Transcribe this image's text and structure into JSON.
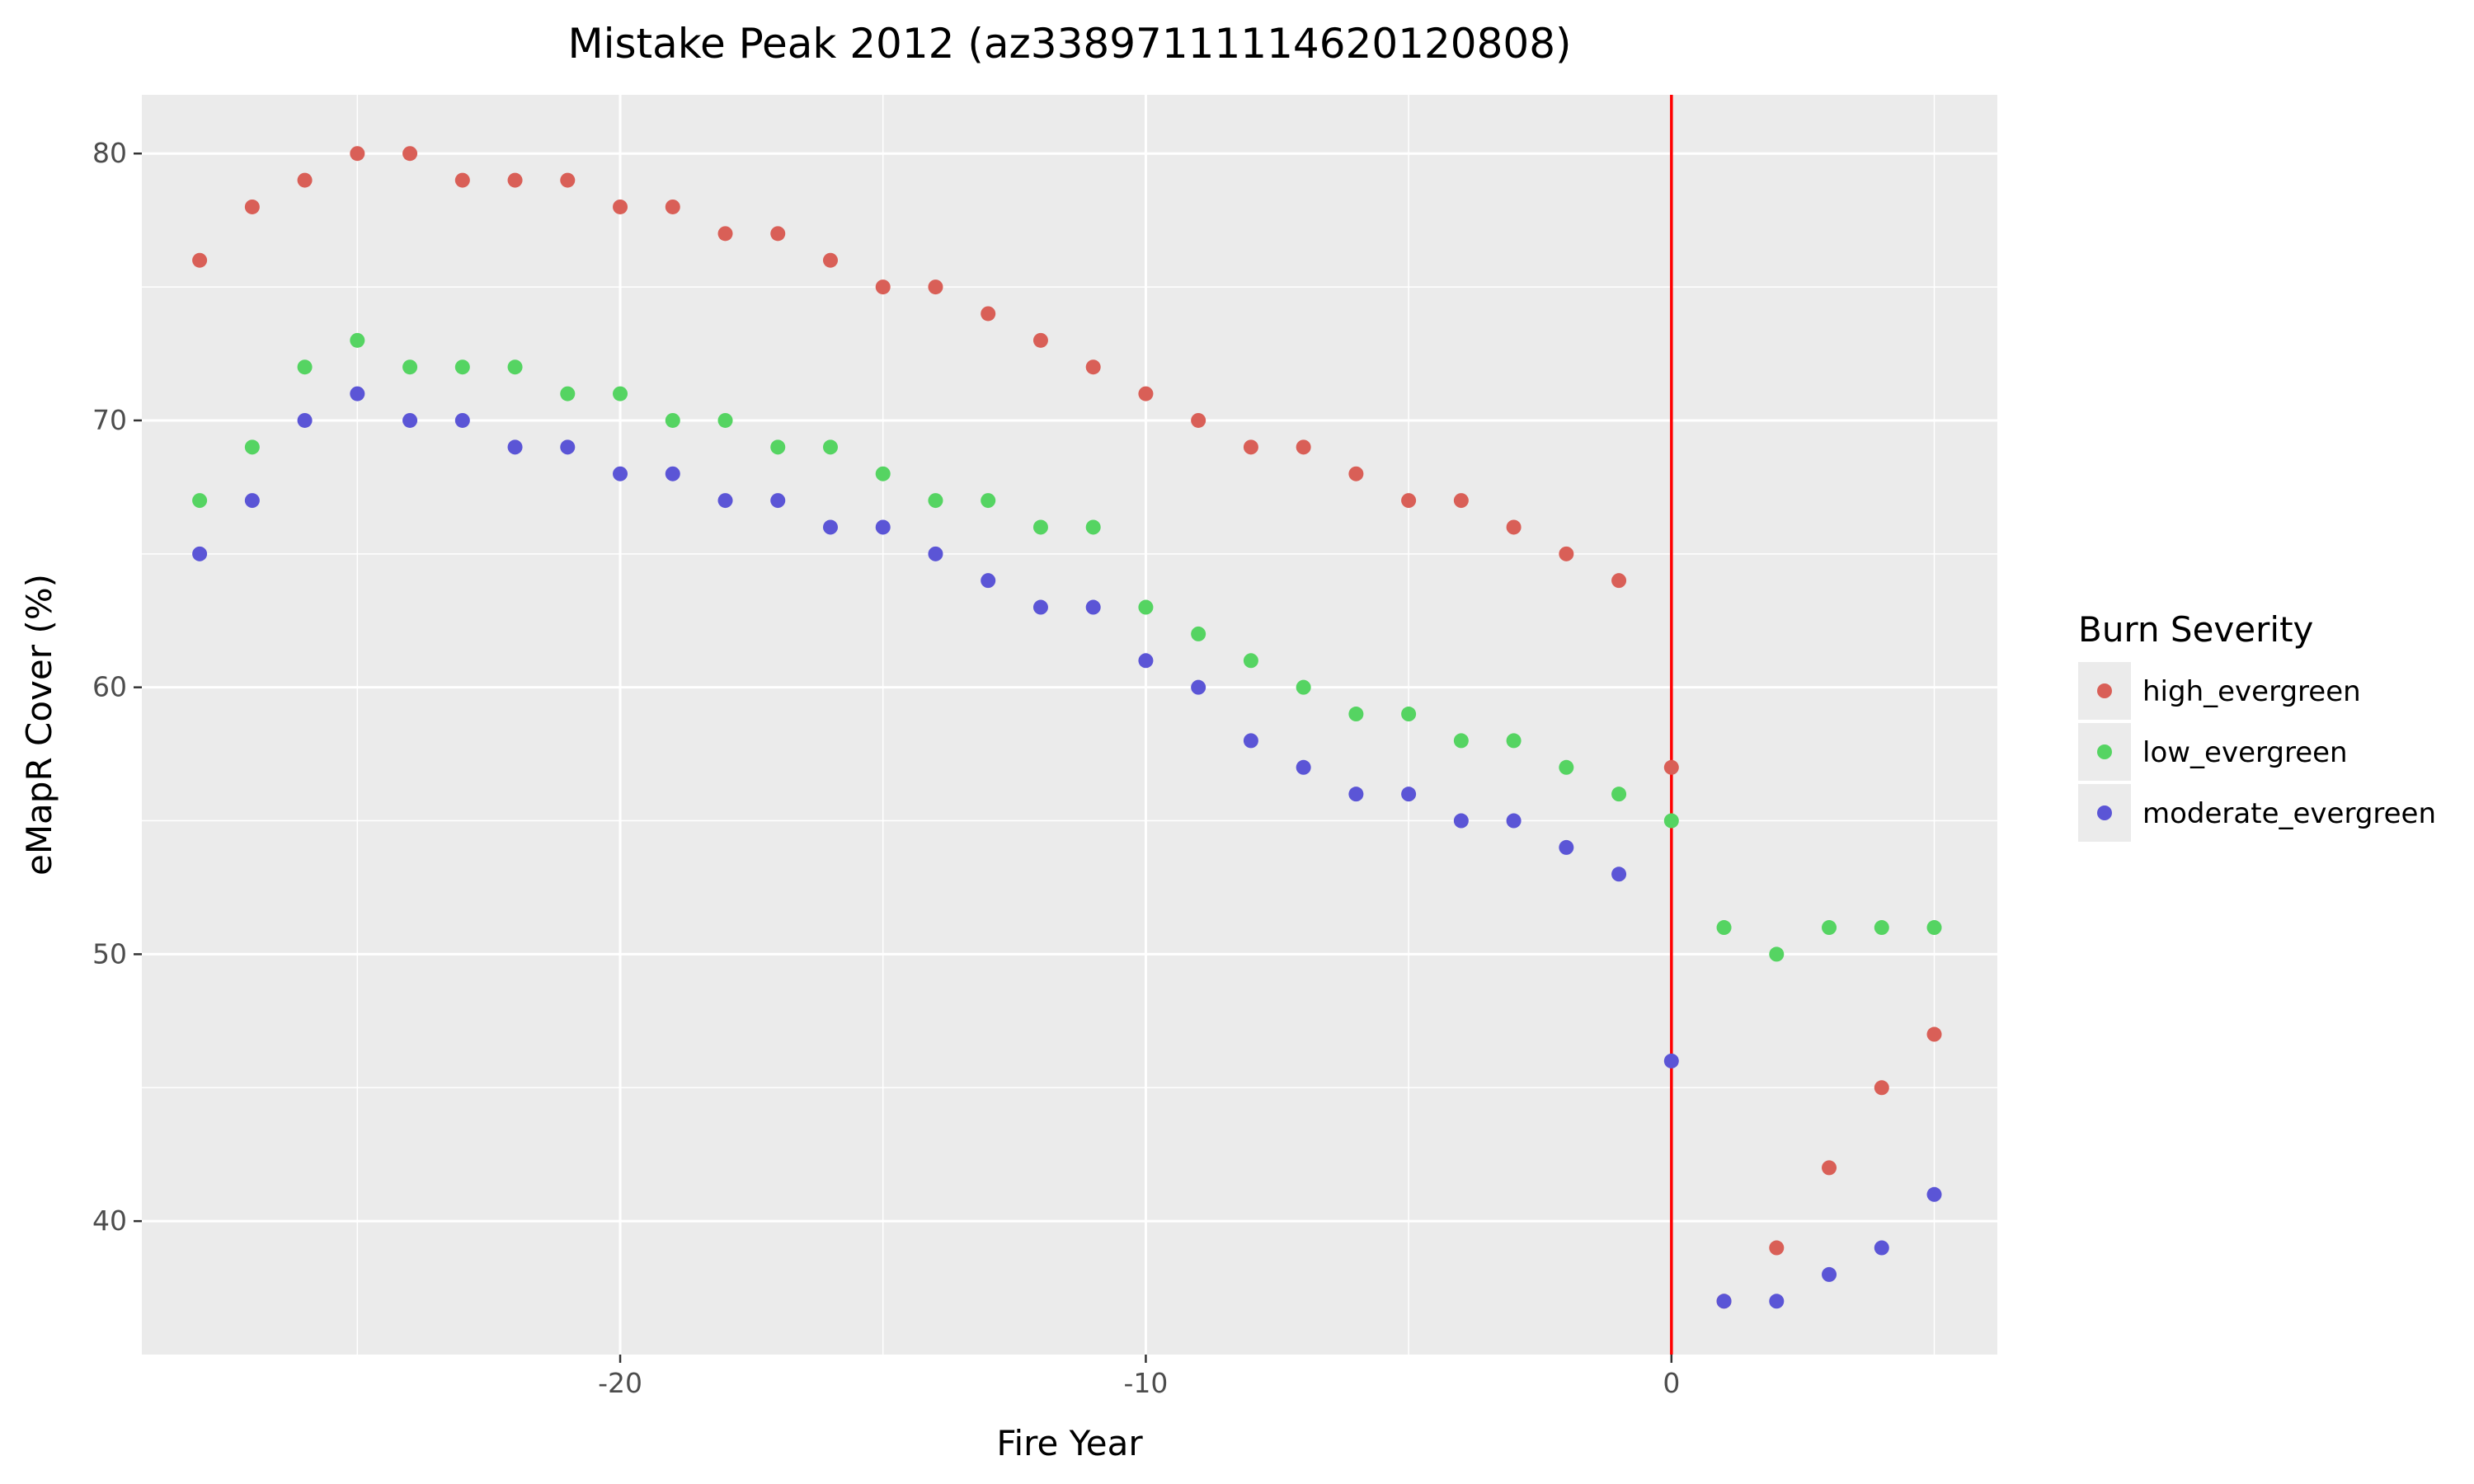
{
  "chart_data": {
    "type": "scatter",
    "title": "Mistake Peak 2012 (az33897111114620120808)",
    "xlabel": "Fire Year",
    "ylabel": "eMapR Cover (%)",
    "xlim": [
      -29.1,
      6.2
    ],
    "ylim": [
      35,
      82.2
    ],
    "x_ticks": [
      -20,
      -10,
      0
    ],
    "x_tick_labels": [
      "-20",
      "-10",
      "0"
    ],
    "y_ticks": [
      40,
      50,
      60,
      70,
      80
    ],
    "y_tick_labels": [
      "40",
      "50",
      "60",
      "70",
      "80"
    ],
    "grid": true,
    "vline": {
      "x": 0,
      "color": "#ff0000"
    },
    "legend": {
      "title": "Burn Severity",
      "position": "right"
    },
    "series": [
      {
        "name": "high_evergreen",
        "color": "#d95f57",
        "x": [
          -28,
          -27,
          -26,
          -25,
          -24,
          -23,
          -22,
          -21,
          -20,
          -19,
          -18,
          -17,
          -16,
          -15,
          -14,
          -13,
          -12,
          -11,
          -10,
          -9,
          -8,
          -7,
          -6,
          -5,
          -4,
          -3,
          -2,
          -1,
          0,
          1,
          2,
          3,
          4,
          5
        ],
        "y": [
          76,
          78,
          79,
          80,
          80,
          79,
          79,
          79,
          78,
          78,
          77,
          77,
          76,
          75,
          75,
          74,
          73,
          72,
          71,
          70,
          69,
          69,
          68,
          67,
          67,
          66,
          65,
          64,
          57,
          37,
          39,
          42,
          45,
          47
        ]
      },
      {
        "name": "low_evergreen",
        "color": "#55d462",
        "x": [
          -28,
          -27,
          -26,
          -25,
          -24,
          -23,
          -22,
          -21,
          -20,
          -19,
          -18,
          -17,
          -16,
          -15,
          -14,
          -13,
          -12,
          -11,
          -10,
          -9,
          -8,
          -7,
          -6,
          -5,
          -4,
          -3,
          -2,
          -1,
          0,
          1,
          2,
          3,
          4,
          5
        ],
        "y": [
          67,
          69,
          72,
          73,
          72,
          72,
          72,
          71,
          71,
          70,
          70,
          69,
          69,
          68,
          67,
          67,
          66,
          66,
          63,
          62,
          61,
          60,
          59,
          59,
          58,
          58,
          57,
          56,
          55,
          51,
          50,
          51,
          51,
          51
        ]
      },
      {
        "name": "moderate_evergreen",
        "color": "#5b55d6",
        "x": [
          -28,
          -27,
          -26,
          -25,
          -24,
          -23,
          -22,
          -21,
          -20,
          -19,
          -18,
          -17,
          -16,
          -15,
          -14,
          -13,
          -12,
          -11,
          -10,
          -9,
          -8,
          -7,
          -6,
          -5,
          -4,
          -3,
          -2,
          -1,
          0,
          1,
          2,
          3,
          4,
          5
        ],
        "y": [
          65,
          67,
          70,
          71,
          70,
          70,
          69,
          69,
          68,
          68,
          67,
          67,
          66,
          66,
          65,
          64,
          63,
          63,
          61,
          60,
          58,
          57,
          56,
          56,
          55,
          55,
          54,
          53,
          46,
          37,
          37,
          38,
          39,
          41
        ]
      }
    ]
  }
}
